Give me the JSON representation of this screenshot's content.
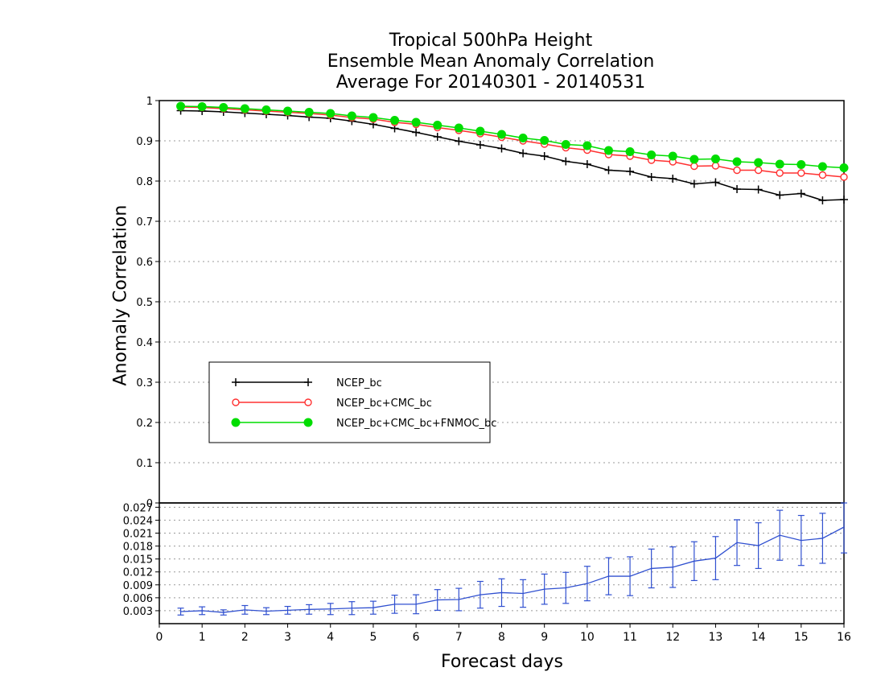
{
  "chart_data": [
    {
      "type": "line",
      "title": [
        "Tropical 500hPa Height",
        "Ensemble Mean Anomaly Correlation",
        "Average For 20140301 - 20140531"
      ],
      "ylabel": "Anomaly Correlation",
      "ylim": [
        0,
        1
      ],
      "yticks": [
        "0",
        "0.1",
        "0.2",
        "0.3",
        "0.4",
        "0.5",
        "0.6",
        "0.7",
        "0.8",
        "0.9",
        "1"
      ],
      "grid": true,
      "legend_position": "center-left",
      "x": [
        0.5,
        1,
        1.5,
        2,
        2.5,
        3,
        3.5,
        4,
        4.5,
        5,
        5.5,
        6,
        6.5,
        7,
        7.5,
        8,
        8.5,
        9,
        9.5,
        10,
        10.5,
        11,
        11.5,
        12,
        12.5,
        13,
        13.5,
        14,
        14.5,
        15,
        15.5,
        16
      ],
      "series": [
        {
          "name": "NCEP_bc",
          "color": "#000000",
          "marker": "plus",
          "values": [
            0.975,
            0.974,
            0.972,
            0.969,
            0.966,
            0.963,
            0.959,
            0.956,
            0.949,
            0.941,
            0.931,
            0.921,
            0.91,
            0.899,
            0.89,
            0.881,
            0.869,
            0.862,
            0.849,
            0.842,
            0.827,
            0.824,
            0.81,
            0.806,
            0.793,
            0.797,
            0.78,
            0.779,
            0.765,
            0.769,
            0.752,
            0.754
          ]
        },
        {
          "name": "NCEP_bc+CMC_bc",
          "color": "#ff3030",
          "marker": "circle-open",
          "values": [
            0.984,
            0.983,
            0.98,
            0.977,
            0.974,
            0.971,
            0.968,
            0.964,
            0.958,
            0.954,
            0.946,
            0.941,
            0.933,
            0.926,
            0.918,
            0.909,
            0.9,
            0.892,
            0.883,
            0.877,
            0.866,
            0.862,
            0.852,
            0.848,
            0.837,
            0.838,
            0.827,
            0.827,
            0.82,
            0.82,
            0.815,
            0.81
          ]
        },
        {
          "name": "NCEP_bc+CMC_bc+FNMOC_bc",
          "color": "#00dd00",
          "marker": "circle-filled",
          "values": [
            0.986,
            0.985,
            0.983,
            0.98,
            0.977,
            0.974,
            0.971,
            0.968,
            0.962,
            0.958,
            0.951,
            0.946,
            0.939,
            0.932,
            0.924,
            0.916,
            0.907,
            0.901,
            0.891,
            0.888,
            0.876,
            0.873,
            0.865,
            0.862,
            0.854,
            0.855,
            0.848,
            0.846,
            0.842,
            0.841,
            0.836,
            0.833
          ]
        }
      ]
    },
    {
      "type": "line",
      "xlabel": "Forecast days",
      "xlim": [
        0,
        16
      ],
      "xticks": [
        "0",
        "1",
        "2",
        "3",
        "4",
        "5",
        "6",
        "7",
        "8",
        "9",
        "10",
        "11",
        "12",
        "13",
        "14",
        "15",
        "16"
      ],
      "ylim": [
        0,
        0.028
      ],
      "yticks": [
        "0.003",
        "0.006",
        "0.009",
        "0.012",
        "0.015",
        "0.018",
        "0.021",
        "0.024",
        "0.027"
      ],
      "grid": true,
      "x": [
        0.5,
        1,
        1.5,
        2,
        2.5,
        3,
        3.5,
        4,
        4.5,
        5,
        5.5,
        6,
        6.5,
        7,
        7.5,
        8,
        8.5,
        9,
        9.5,
        10,
        10.5,
        11,
        11.5,
        12,
        12.5,
        13,
        13.5,
        14,
        14.5,
        15,
        15.5,
        16
      ],
      "series": [
        {
          "color": "#3050d0",
          "values": [
            0.0028,
            0.003,
            0.0026,
            0.0032,
            0.0029,
            0.0031,
            0.0033,
            0.0034,
            0.0036,
            0.0037,
            0.0045,
            0.0045,
            0.0055,
            0.0056,
            0.0067,
            0.0072,
            0.007,
            0.008,
            0.0083,
            0.0093,
            0.011,
            0.011,
            0.0128,
            0.0131,
            0.0145,
            0.0152,
            0.0188,
            0.0181,
            0.0205,
            0.0193,
            0.0198,
            0.0224
          ],
          "error": [
            0.0008,
            0.0009,
            0.0006,
            0.001,
            0.0008,
            0.0009,
            0.0011,
            0.0013,
            0.0015,
            0.0015,
            0.0021,
            0.0022,
            0.0024,
            0.0026,
            0.0031,
            0.0032,
            0.0032,
            0.0035,
            0.0036,
            0.004,
            0.0043,
            0.0045,
            0.0045,
            0.0047,
            0.0045,
            0.005,
            0.0053,
            0.0053,
            0.0058,
            0.0058,
            0.0058,
            0.006
          ]
        }
      ]
    }
  ]
}
